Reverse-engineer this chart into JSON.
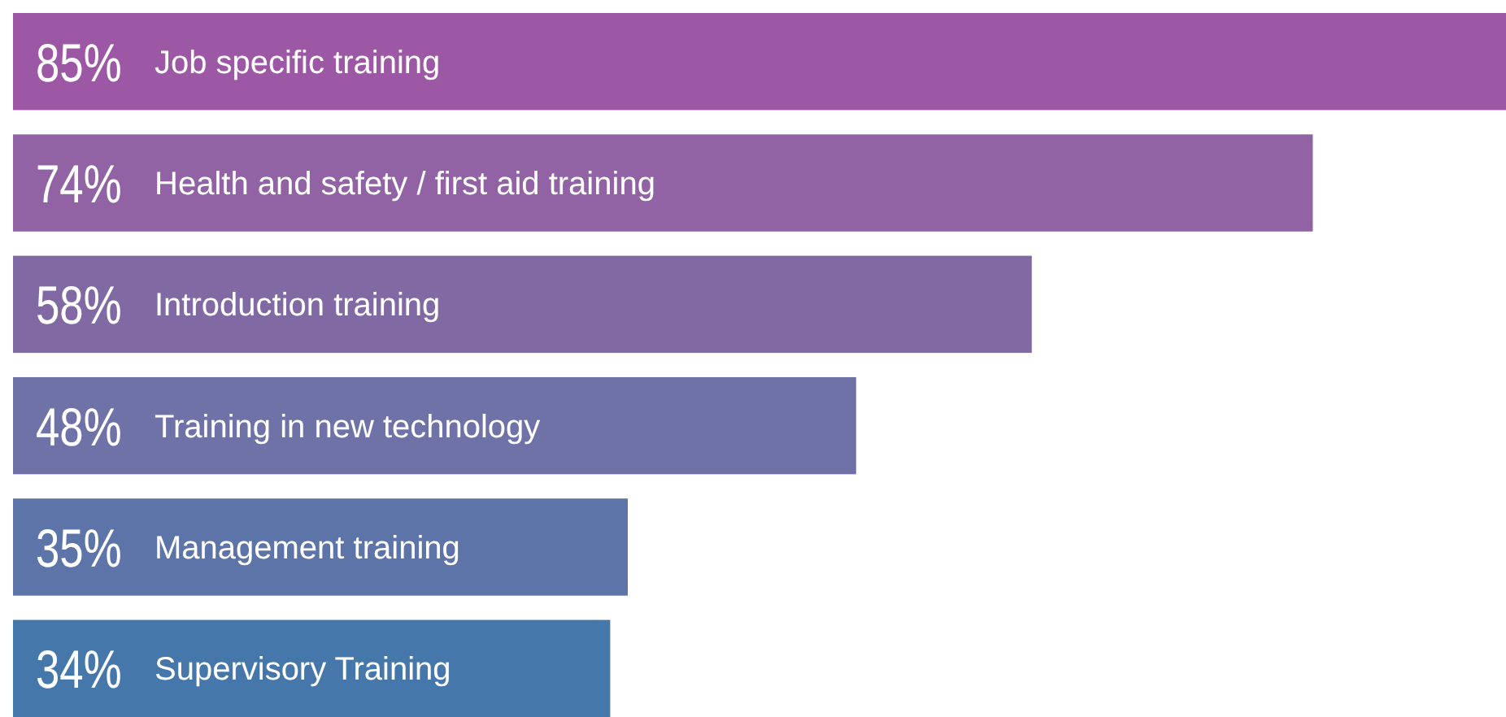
{
  "chart_data": {
    "type": "bar",
    "orientation": "horizontal",
    "categories": [
      "Job specific training",
      "Health and safety / first aid training",
      "Introduction training",
      "Training in new technology",
      "Management training",
      "Supervisory Training"
    ],
    "values": [
      85,
      74,
      58,
      48,
      35,
      34
    ],
    "value_labels": [
      "85%",
      "74%",
      "58%",
      "48%",
      "35%",
      "34%"
    ],
    "colors": [
      "#9c58a5",
      "#9263a4",
      "#8169a4",
      "#6e72a7",
      "#5d74a9",
      "#4677aa"
    ]
  }
}
